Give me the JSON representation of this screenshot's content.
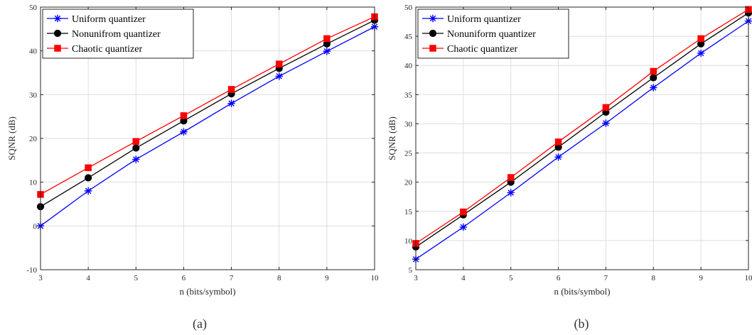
{
  "chart_data": [
    {
      "type": "line",
      "caption": "(a)",
      "xlabel": "n (bits/symbol)",
      "ylabel": "SQNR (dB)",
      "xlim": [
        3,
        10
      ],
      "ylim": [
        -10,
        50
      ],
      "xticks": [
        3,
        4,
        5,
        6,
        7,
        8,
        9,
        10
      ],
      "yticks": [
        -10,
        0,
        10,
        20,
        30,
        40,
        50
      ],
      "grid": true,
      "legend_position": "top-left",
      "x": [
        3,
        4,
        5,
        6,
        7,
        8,
        9,
        10
      ],
      "series": [
        {
          "name": "Uniform quantizer",
          "color": "#0000ff",
          "marker": "asterisk",
          "values": [
            0.0,
            8.0,
            15.2,
            21.5,
            28.0,
            34.2,
            39.9,
            45.5
          ]
        },
        {
          "name": "Nonunifrom quantizer",
          "color": "#000000",
          "marker": "circle",
          "values": [
            4.4,
            11.0,
            17.8,
            24.0,
            30.2,
            36.0,
            41.6,
            47.0
          ]
        },
        {
          "name": "Chaotic quantizer",
          "color": "#ff0000",
          "marker": "square",
          "values": [
            7.2,
            13.3,
            19.3,
            25.2,
            31.2,
            37.0,
            42.8,
            47.8
          ]
        }
      ]
    },
    {
      "type": "line",
      "caption": "(b)",
      "xlabel": "n (bits/symbol)",
      "ylabel": "SQNR (dB)",
      "xlim": [
        3,
        10
      ],
      "ylim": [
        5,
        50
      ],
      "xticks": [
        3,
        4,
        5,
        6,
        7,
        8,
        9,
        10
      ],
      "yticks": [
        5,
        10,
        15,
        20,
        25,
        30,
        35,
        40,
        45,
        50
      ],
      "grid": true,
      "legend_position": "top-left",
      "x": [
        3,
        4,
        5,
        6,
        7,
        8,
        9,
        10
      ],
      "series": [
        {
          "name": "Uniform quantizer",
          "color": "#0000ff",
          "marker": "asterisk",
          "values": [
            6.8,
            12.3,
            18.2,
            24.3,
            30.1,
            36.2,
            42.1,
            47.6
          ]
        },
        {
          "name": "Nonuniform quantizer",
          "color": "#000000",
          "marker": "circle",
          "values": [
            8.9,
            14.4,
            20.0,
            26.0,
            32.0,
            37.9,
            43.7,
            49.0
          ]
        },
        {
          "name": "Chaotic quantizer",
          "color": "#ff0000",
          "marker": "square",
          "values": [
            9.5,
            14.9,
            20.8,
            26.9,
            32.8,
            39.0,
            44.6,
            49.6
          ]
        }
      ]
    }
  ]
}
